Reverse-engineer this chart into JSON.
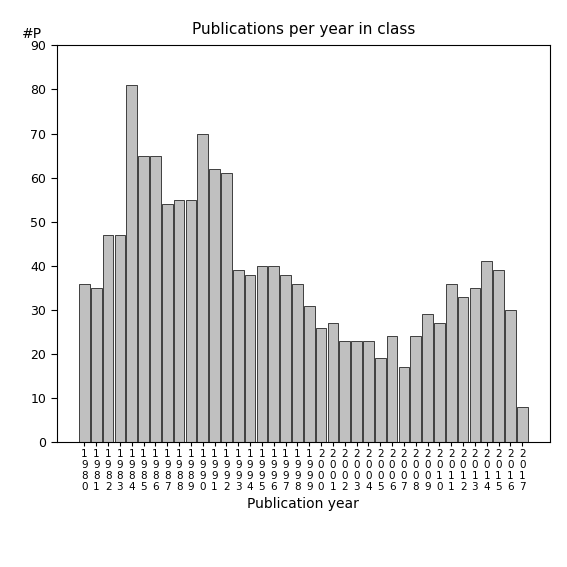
{
  "title": "Publications per year in class",
  "xlabel": "Publication year",
  "ylabel": "#P",
  "bar_color": "#c0c0c0",
  "bar_edge_color": "#000000",
  "bar_edge_width": 0.5,
  "ylim": [
    0,
    90
  ],
  "yticks": [
    0,
    10,
    20,
    30,
    40,
    50,
    60,
    70,
    80,
    90
  ],
  "years": [
    1980,
    1981,
    1982,
    1983,
    1984,
    1985,
    1986,
    1987,
    1988,
    1989,
    1990,
    1991,
    1992,
    1993,
    1994,
    1995,
    1996,
    1997,
    1998,
    1999,
    2000,
    2001,
    2002,
    2003,
    2004,
    2005,
    2006,
    2007,
    2008,
    2009,
    2010,
    2011,
    2012,
    2013,
    2014,
    2015,
    2016,
    2017
  ],
  "values": [
    36,
    35,
    47,
    47,
    81,
    65,
    65,
    54,
    55,
    55,
    70,
    62,
    61,
    39,
    38,
    40,
    40,
    38,
    36,
    31,
    26,
    27,
    23,
    23,
    23,
    19,
    24,
    17,
    24,
    29,
    27,
    36,
    33,
    35,
    41,
    39,
    30,
    8
  ]
}
